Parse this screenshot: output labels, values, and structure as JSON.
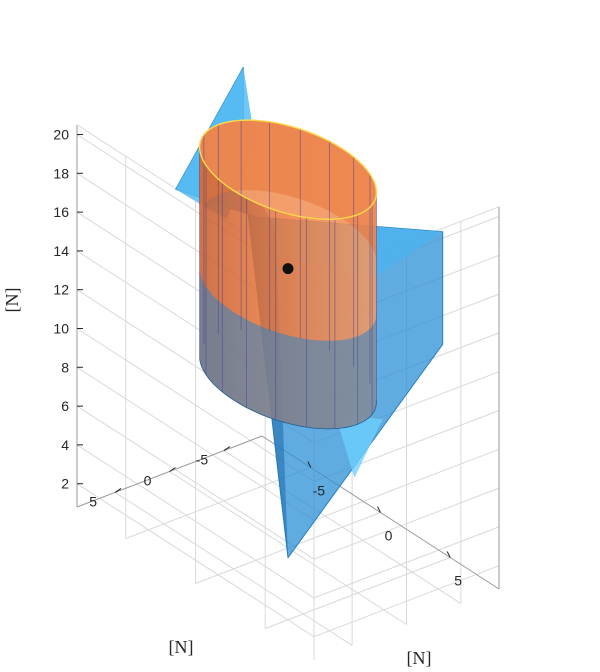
{
  "chart_data": {
    "type": "surface3d",
    "title": "",
    "axes": {
      "x": {
        "label": "[N]",
        "ticks": [
          "-5",
          "0",
          "5"
        ],
        "ticks_values": [
          -5,
          0,
          5
        ],
        "range": [
          -8.5,
          8.5
        ]
      },
      "y": {
        "label": "[N]",
        "ticks": [
          "-5",
          "0",
          "5"
        ],
        "ticks_values": [
          -5,
          0,
          5
        ],
        "range": [
          -8.5,
          8.5
        ]
      },
      "z": {
        "label": "[N]",
        "ticks": [
          "2",
          "4",
          "6",
          "8",
          "10",
          "12",
          "14",
          "16",
          "18",
          "20"
        ],
        "ticks_values": [
          2,
          4,
          6,
          8,
          10,
          12,
          14,
          16,
          18,
          20
        ],
        "range": [
          0.8,
          20.5
        ]
      }
    },
    "grid": true,
    "box": true,
    "objects": [
      {
        "name": "",
        "kind": "inverted-cone-surface",
        "color": "#2b8fd6",
        "alpha": 0.75,
        "apex_z": 0.3,
        "top_z": 20.4,
        "top_radius": 10
      },
      {
        "name": "",
        "kind": "cylinder",
        "color": "#f07b3f",
        "alpha": 0.85,
        "edge_color": "#ffd84a",
        "radius": 5,
        "z_range": [
          9.5,
          20.3
        ]
      },
      {
        "name": "",
        "kind": "point",
        "color": "#111111",
        "x": 0,
        "y": 0,
        "z": 15.2
      }
    ]
  }
}
